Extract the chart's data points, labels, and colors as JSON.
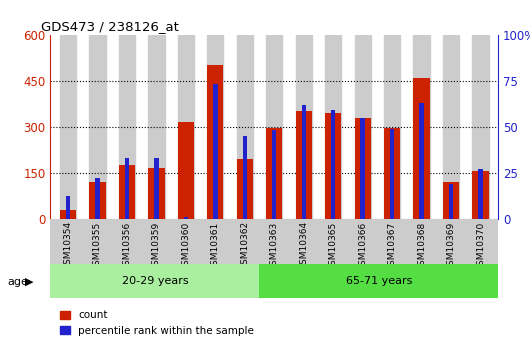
{
  "title": "GDS473 / 238126_at",
  "categories": [
    "GSM10354",
    "GSM10355",
    "GSM10356",
    "GSM10359",
    "GSM10360",
    "GSM10361",
    "GSM10362",
    "GSM10363",
    "GSM10364",
    "GSM10365",
    "GSM10366",
    "GSM10367",
    "GSM10368",
    "GSM10369",
    "GSM10370"
  ],
  "count_values": [
    30,
    120,
    175,
    165,
    315,
    500,
    195,
    295,
    350,
    345,
    330,
    295,
    460,
    120,
    155
  ],
  "percentile_values": [
    12.5,
    22.0,
    33.0,
    33.0,
    1.0,
    73.0,
    45.0,
    48.0,
    62.0,
    59.0,
    55.0,
    49.0,
    63.0,
    19.0,
    27.0
  ],
  "group1_label": "20-29 years",
  "group2_label": "65-71 years",
  "group1_count": 7,
  "group2_count": 8,
  "count_color": "#cc2200",
  "percentile_color": "#2222cc",
  "ylim_left": [
    0,
    600
  ],
  "ylim_right": [
    0,
    100
  ],
  "yticks_left": [
    0,
    150,
    300,
    450,
    600
  ],
  "yticks_right": [
    0,
    25,
    50,
    75,
    100
  ],
  "bar_bg_color": "#cccccc",
  "group_bg_color1": "#aaeea0",
  "group_bg_color2": "#55dd44",
  "legend_count": "count",
  "legend_percentile": "percentile rank within the sample",
  "age_label": "age"
}
